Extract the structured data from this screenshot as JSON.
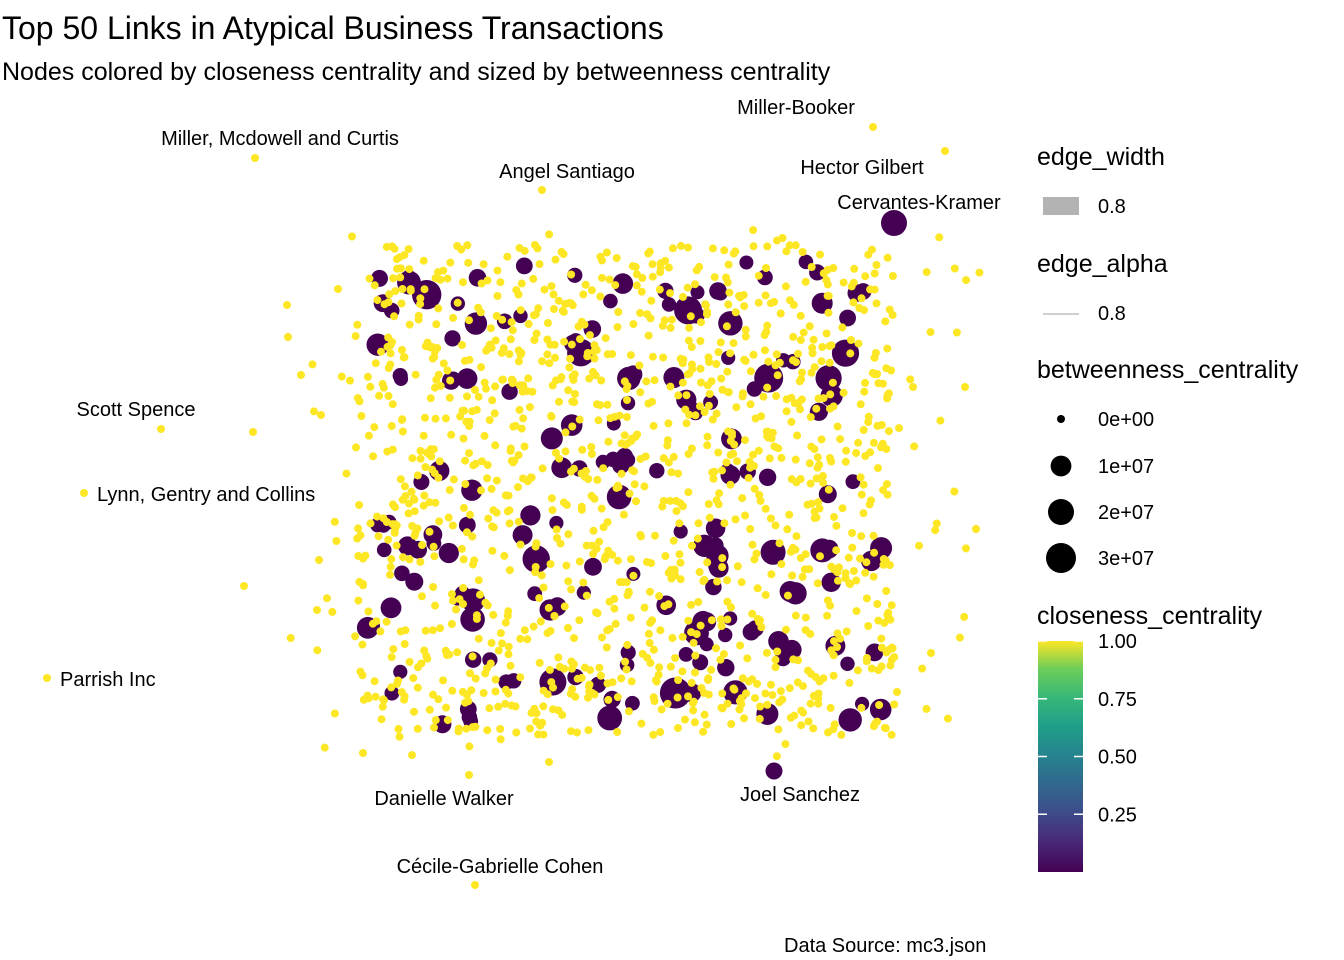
{
  "chart_data": {
    "type": "scatter",
    "title": "Top 50 Links in Atypical Business Transactions",
    "subtitle": "Nodes colored by closeness centrality and sized by betweenness centrality",
    "caption": "Data Source: mc3.json",
    "labeled_nodes": [
      {
        "label": "Miller-Booker",
        "closeness": 1.0,
        "betweenness": 0
      },
      {
        "label": "Miller, Mcdowell and Curtis",
        "closeness": 1.0,
        "betweenness": 0
      },
      {
        "label": "Hector Gilbert",
        "closeness": 1.0,
        "betweenness": 0
      },
      {
        "label": "Angel Santiago",
        "closeness": 1.0,
        "betweenness": 0
      },
      {
        "label": "Cervantes-Kramer",
        "closeness": 0.0,
        "betweenness": 20000000
      },
      {
        "label": "Scott Spence",
        "closeness": 1.0,
        "betweenness": 0
      },
      {
        "label": "Lynn, Gentry and Collins",
        "closeness": 1.0,
        "betweenness": 0
      },
      {
        "label": "Parrish Inc",
        "closeness": 1.0,
        "betweenness": 0
      },
      {
        "label": "Danielle Walker",
        "closeness": 1.0,
        "betweenness": 0
      },
      {
        "label": "Joel Sanchez",
        "closeness": 0.0,
        "betweenness": 5000000
      },
      {
        "label": "Cécile-Gabrielle Cohen",
        "closeness": 1.0,
        "betweenness": 0
      }
    ],
    "legend": {
      "edge_width": {
        "title": "edge_width",
        "value": "0.8"
      },
      "edge_alpha": {
        "title": "edge_alpha",
        "value": "0.8"
      },
      "betweenness_centrality": {
        "title": "betweenness_centrality",
        "breaks": [
          "0e+00",
          "1e+07",
          "2e+07",
          "3e+07"
        ],
        "values": [
          0,
          10000000,
          20000000,
          30000000
        ]
      },
      "closeness_centrality": {
        "title": "closeness_centrality",
        "breaks": [
          "1.00",
          "0.75",
          "0.50",
          "0.25"
        ],
        "values": [
          1.0,
          0.75,
          0.5,
          0.25
        ],
        "range": [
          0,
          1
        ]
      }
    },
    "colors": {
      "high": "#FDE725",
      "mid": "#21908C",
      "low": "#440154",
      "edge_swatch": "#B3B3B3"
    }
  }
}
